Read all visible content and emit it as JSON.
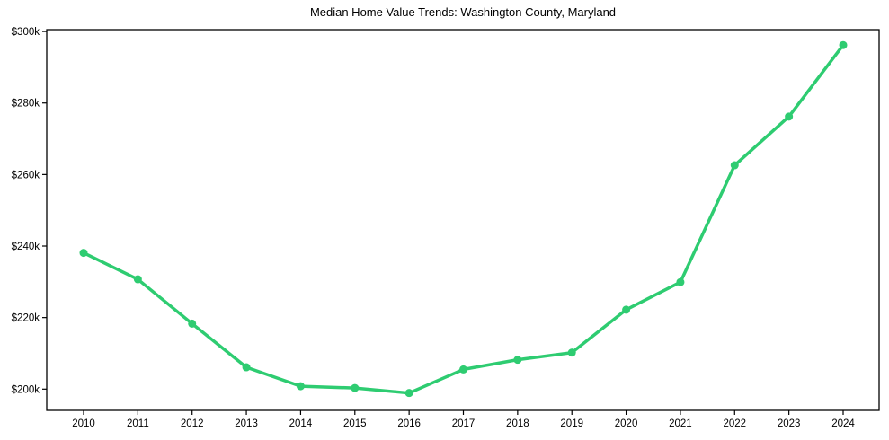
{
  "chart_data": {
    "type": "line",
    "title": "Median Home Value Trends: Washington County, Maryland",
    "x": [
      2010,
      2011,
      2012,
      2013,
      2014,
      2015,
      2016,
      2017,
      2018,
      2019,
      2020,
      2021,
      2022,
      2023,
      2024
    ],
    "x_tick_labels": [
      "2010",
      "2011",
      "2012",
      "2013",
      "2014",
      "2015",
      "2016",
      "2017",
      "2018",
      "2019",
      "2020",
      "2021",
      "2022",
      "2023",
      "2024"
    ],
    "values": [
      238.1,
      230.7,
      218.3,
      206.1,
      200.8,
      200.3,
      198.9,
      205.5,
      208.2,
      210.2,
      222.2,
      229.9,
      262.6,
      276.2,
      296.2
    ],
    "values_unit": "USD thousands",
    "xlabel": "",
    "ylabel": "",
    "ylim": [
      194.05,
      300.52
    ],
    "y_ticks": [
      200,
      220,
      240,
      260,
      280,
      300
    ],
    "y_tick_labels": [
      "$200k",
      "$220k",
      "$240k",
      "$260k",
      "$280k",
      "$300k"
    ],
    "grid": false,
    "legend": "none",
    "marker": "circle",
    "line_color": "#2ecc71",
    "axis_color": "#000000",
    "text_color": "#000000",
    "background_color": "#ffffff"
  }
}
